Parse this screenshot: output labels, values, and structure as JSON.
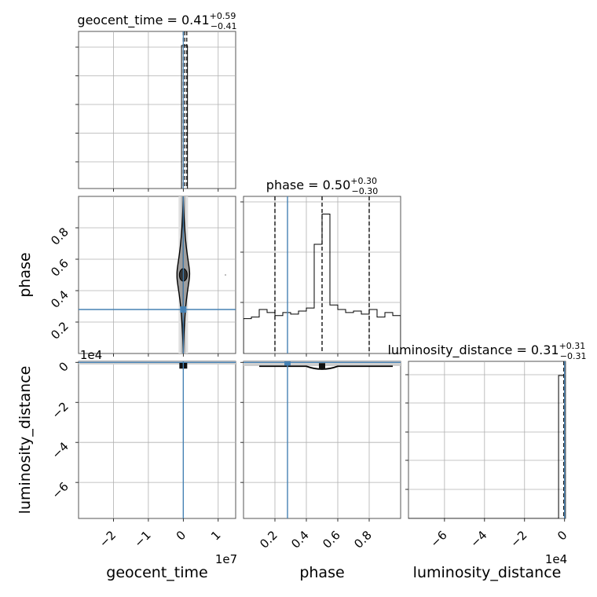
{
  "chart_data": {
    "type": "corner",
    "parameters": [
      "geocent_time",
      "phase",
      "luminosity_distance"
    ],
    "truths": {
      "geocent_time": 0.0,
      "phase": 0.28,
      "luminosity_distance": 0.0
    },
    "titles": [
      {
        "param": "geocent_time",
        "prefix": "geocent_time = 0.41",
        "sup": "+0.59",
        "sub": "−0.41"
      },
      {
        "param": "phase",
        "prefix": "phase = 0.50",
        "sup": "+0.30",
        "sub": "−0.30"
      },
      {
        "param": "luminosity_distance",
        "prefix": "luminosity_distance = 0.31",
        "sup": "+0.31",
        "sub": "−0.31"
      }
    ],
    "axes": {
      "geocent_time": {
        "label": "geocent_time",
        "range": [
          -30000000.0,
          15000000.0
        ],
        "offset_text": "1e7",
        "tick_values": [
          -20000000.0,
          -10000000.0,
          0,
          10000000.0
        ],
        "tick_labels": [
          "−2",
          "−1",
          "0",
          "1"
        ]
      },
      "phase": {
        "label": "phase",
        "range": [
          0.0,
          1.0
        ],
        "tick_values": [
          0.2,
          0.4,
          0.6,
          0.8
        ],
        "tick_labels": [
          "0.2",
          "0.4",
          "0.6",
          "0.8"
        ]
      },
      "luminosity_distance": {
        "label": "luminosity_distance",
        "range": [
          -78000,
          500
        ],
        "offset_text": "1e4",
        "tick_values": [
          -60000,
          -40000,
          -20000,
          0
        ],
        "tick_labels": [
          "−6",
          "−4",
          "−2",
          "0"
        ]
      }
    },
    "quantile_lines": {
      "geocent_time": [
        0.0,
        0.41,
        1.0
      ],
      "phase": [
        0.2,
        0.5,
        0.8
      ],
      "luminosity_distance": [
        0.0,
        0.31,
        0.62
      ]
    },
    "hist_geocent_time": {
      "bins": [
        {
          "start": -500000,
          "end": 500000,
          "count": 1.0
        },
        {
          "start": 500000,
          "end": 1200000,
          "count": 1.0
        }
      ]
    },
    "hist_phase": {
      "bin_edges": [
        0.0,
        0.05,
        0.1,
        0.15,
        0.2,
        0.25,
        0.3,
        0.35,
        0.4,
        0.45,
        0.5,
        0.55,
        0.6,
        0.65,
        0.7,
        0.75,
        0.8,
        0.85,
        0.9,
        0.95,
        1.0
      ],
      "counts": [
        0.23,
        0.24,
        0.29,
        0.27,
        0.25,
        0.27,
        0.26,
        0.28,
        0.3,
        0.72,
        0.92,
        0.32,
        0.29,
        0.27,
        0.28,
        0.26,
        0.29,
        0.24,
        0.27,
        0.25
      ]
    },
    "hist_luminosity_distance": {
      "bins": [
        {
          "start": -3000,
          "end": 0,
          "count": 1.0
        }
      ]
    },
    "contour_phase_vs_geocent_time": {
      "center": [
        0.0,
        0.5
      ],
      "peak_phase_range": [
        0.45,
        0.56
      ]
    },
    "contour_ld_vs_phase": {
      "dip_phase": 0.5,
      "dip_depth": -2500
    }
  }
}
